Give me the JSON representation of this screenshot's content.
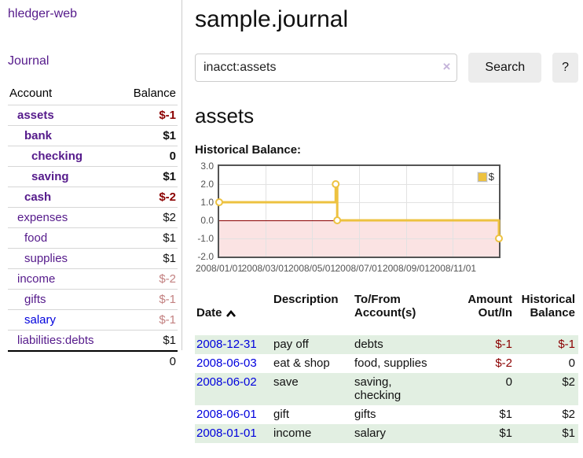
{
  "app": {
    "title": "hledger-web"
  },
  "colors": {
    "purple": "#551a8b",
    "blue": "#0000dd",
    "negative": "#8b0000",
    "negative_faded": "#c38181",
    "stripe": "#e2efe2",
    "line": "#edc240",
    "negative_fill": "#fbe3e3",
    "zero_line": "#8b0000",
    "grid": "#e2e2e2",
    "axis_text": "#545454"
  },
  "sidebar": {
    "journal_link": "Journal",
    "accounts_header": {
      "account": "Account",
      "balance": "Balance"
    },
    "accounts": [
      {
        "name": "assets",
        "indent": 1,
        "bold": true,
        "color": "purple",
        "balance": "$-1",
        "tone": "neg"
      },
      {
        "name": "bank",
        "indent": 2,
        "bold": true,
        "color": "purple",
        "balance": "$1",
        "tone": "pos"
      },
      {
        "name": "checking",
        "indent": 3,
        "bold": true,
        "color": "purple",
        "balance": "0",
        "tone": "pos"
      },
      {
        "name": "saving",
        "indent": 3,
        "bold": true,
        "color": "purple",
        "balance": "$1",
        "tone": "pos"
      },
      {
        "name": "cash",
        "indent": 2,
        "bold": true,
        "color": "purple",
        "balance": "$-2",
        "tone": "neg"
      },
      {
        "name": "expenses",
        "indent": 1,
        "bold": false,
        "color": "purple",
        "balance": "$2",
        "tone": "pos"
      },
      {
        "name": "food",
        "indent": 2,
        "bold": false,
        "color": "purple",
        "balance": "$1",
        "tone": "pos"
      },
      {
        "name": "supplies",
        "indent": 2,
        "bold": false,
        "color": "purple",
        "balance": "$1",
        "tone": "pos"
      },
      {
        "name": "income",
        "indent": 1,
        "bold": false,
        "color": "purple",
        "balance": "$-2",
        "tone": "negfade"
      },
      {
        "name": "gifts",
        "indent": 2,
        "bold": false,
        "color": "purple",
        "balance": "$-1",
        "tone": "negfade"
      },
      {
        "name": "salary",
        "indent": 2,
        "bold": false,
        "color": "blue",
        "balance": "$-1",
        "tone": "negfade"
      },
      {
        "name": "liabilities:debts",
        "indent": 1,
        "bold": false,
        "color": "purple",
        "balance": "$1",
        "tone": "pos"
      }
    ],
    "total": "0"
  },
  "main": {
    "title": "sample.journal",
    "search": {
      "value": "inacct:assets",
      "clear_icon": "×",
      "button": "Search",
      "help_button": "?"
    },
    "account_heading": "assets",
    "chart_label": "Historical Balance:",
    "chart_data": {
      "type": "line",
      "step": true,
      "title": "Historical Balance:",
      "series": [
        {
          "name": "$",
          "points": [
            [
              "2008/01/01",
              1
            ],
            [
              "2008/06/01",
              2
            ],
            [
              "2008/06/03",
              0
            ],
            [
              "2008/12/31",
              -1
            ]
          ]
        }
      ],
      "x_range": [
        "2008/01/01",
        "2008/12/31"
      ],
      "ylim": [
        -2,
        3
      ],
      "yticks": [
        3,
        2,
        1,
        0,
        -1,
        -2
      ],
      "xticks": [
        "2008/01/01",
        "2008/03/01",
        "2008/05/01",
        "2008/07/01",
        "2008/09/01",
        "2008/11/01"
      ],
      "legend_position": "top-right",
      "grid": true,
      "line_color": "#edc240",
      "negative_fill": "#fbe3e3",
      "zero_line_color": "#8b0000"
    },
    "table": {
      "headers": {
        "date": "Date",
        "description": "Description",
        "accounts": "To/From\nAccount(s)",
        "amount": "Amount\nOut/In",
        "balance": "Historical\nBalance"
      },
      "rows": [
        {
          "date": "2008-12-31",
          "description": "pay off",
          "accounts": "debts",
          "amount": "$-1",
          "amount_tone": "neg",
          "balance": "$-1",
          "balance_tone": "neg"
        },
        {
          "date": "2008-06-03",
          "description": "eat & shop",
          "accounts": "food, supplies",
          "amount": "$-2",
          "amount_tone": "neg",
          "balance": "0",
          "balance_tone": "pos"
        },
        {
          "date": "2008-06-02",
          "description": "save",
          "accounts": "saving,\nchecking",
          "amount": "0",
          "amount_tone": "pos",
          "balance": "$2",
          "balance_tone": "pos"
        },
        {
          "date": "2008-06-01",
          "description": "gift",
          "accounts": "gifts",
          "amount": "$1",
          "amount_tone": "pos",
          "balance": "$2",
          "balance_tone": "pos"
        },
        {
          "date": "2008-01-01",
          "description": "income",
          "accounts": "salary",
          "amount": "$1",
          "amount_tone": "pos",
          "balance": "$1",
          "balance_tone": "pos"
        }
      ]
    }
  }
}
